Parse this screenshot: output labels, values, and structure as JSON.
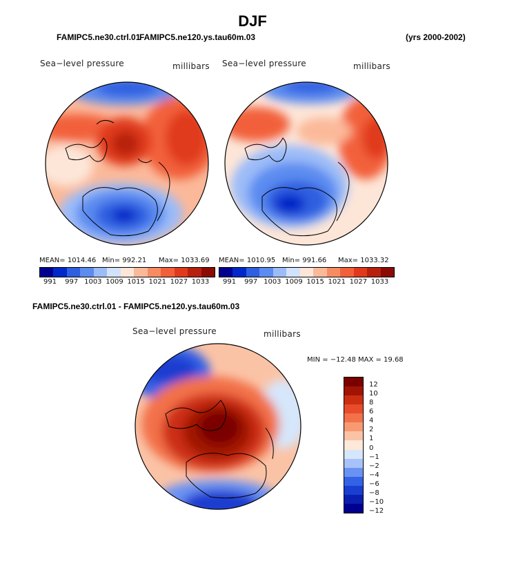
{
  "title": "DJF",
  "header_left_a": "FAMIPC5.ne30.ctrl.01",
  "header_left_b": "FAMIPC5.ne120.ys.tau60m.03",
  "header_right": "(yrs 2000-2002)",
  "panels": [
    {
      "label": "Sea−level pressure",
      "units": "millibars",
      "mean_label": "MEAN= 1014.46",
      "min_label": "Min= 992.21",
      "max_label": "Max= 1033.69"
    },
    {
      "label": "Sea−level pressure",
      "units": "millibars",
      "mean_label": "MEAN= 1010.95",
      "min_label": "Min= 991.66",
      "max_label": "Max= 1033.32"
    }
  ],
  "diff": {
    "title": "FAMIPC5.ne30.ctrl.01 - FAMIPC5.ne120.ys.tau60m.03",
    "label": "Sea−level pressure",
    "units": "millibars",
    "minmax": "MIN = −12.48  MAX =  19.68"
  },
  "colors": {
    "abs_scale": [
      "#00008f",
      "#0028c8",
      "#2e5fe0",
      "#5c8cf0",
      "#9cbcf8",
      "#d2e2fb",
      "#fde6d8",
      "#fbb99a",
      "#f78c63",
      "#f2603a",
      "#e03a1c",
      "#b8200e",
      "#8a0a04"
    ],
    "diff_scale": [
      "#00008f",
      "#0a1fb0",
      "#1a3ed0",
      "#3462e6",
      "#6a92f2",
      "#a6c2f8",
      "#d6e6fb",
      "#fde8da",
      "#fbc3a6",
      "#f79a72",
      "#f2714a",
      "#e84c2a",
      "#cc2e12",
      "#a01406",
      "#7a0000"
    ]
  },
  "chart_data": [
    {
      "type": "polar-contour-map",
      "title": "Sea−level pressure",
      "units": "millibars",
      "case": "FAMIPC5.ne30.ctrl.01",
      "mean": 1014.46,
      "min": 992.21,
      "max": 1033.69,
      "colorbar_ticks": [
        "991",
        "997",
        "1003",
        "1009",
        "1015",
        "1021",
        "1027",
        "1033"
      ]
    },
    {
      "type": "polar-contour-map",
      "title": "Sea−level pressure",
      "units": "millibars",
      "case": "FAMIPC5.ne120.ys.tau60m.03",
      "mean": 1010.95,
      "min": 991.66,
      "max": 1033.32,
      "colorbar_ticks": [
        "991",
        "997",
        "1003",
        "1009",
        "1015",
        "1021",
        "1027",
        "1033"
      ]
    },
    {
      "type": "polar-contour-map",
      "title": "Sea−level pressure",
      "units": "millibars",
      "case": "FAMIPC5.ne30.ctrl.01 - FAMIPC5.ne120.ys.tau60m.03",
      "min": -12.48,
      "max": 19.68,
      "colorbar_ticks": [
        "12",
        "10",
        "8",
        "6",
        "4",
        "2",
        "1",
        "0",
        "−1",
        "−2",
        "−4",
        "−6",
        "−8",
        "−10",
        "−12"
      ]
    }
  ]
}
